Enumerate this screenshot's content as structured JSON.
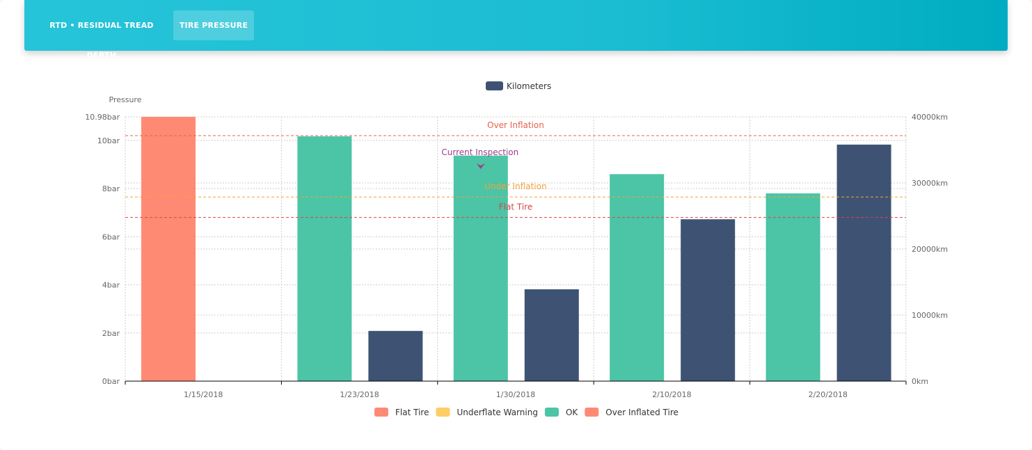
{
  "tabs": [
    {
      "label": "RTD • RESIDUAL TREAD DEPTH",
      "active": false
    },
    {
      "label": "TIRE PRESSURE",
      "active": true
    }
  ],
  "chart_data": {
    "type": "bar",
    "categories": [
      "1/15/2018",
      "1/23/2018",
      "1/30/2018",
      "2/10/2018",
      "2/20/2018"
    ],
    "y_left": {
      "label": "Pressure",
      "unit": "bar",
      "range": [
        0,
        10.98
      ],
      "ticks": [
        "0bar",
        "2bar",
        "4bar",
        "6bar",
        "8bar",
        "10bar",
        "10.98bar"
      ]
    },
    "y_right": {
      "unit": "km",
      "range": [
        0,
        40000
      ],
      "ticks": [
        "0km",
        "10000km",
        "20000km",
        "30000km",
        "40000km"
      ]
    },
    "series": [
      {
        "name": "Pressure",
        "axis": "left",
        "values": [
          10.98,
          10.17,
          9.37,
          8.6,
          7.8
        ],
        "statuses": [
          "Over Inflated Tire",
          "OK",
          "OK",
          "OK",
          "OK"
        ]
      },
      {
        "name": "Kilometers",
        "axis": "right",
        "values": [
          null,
          7600,
          13900,
          24500,
          35800
        ],
        "color": "#3e5373"
      }
    ],
    "reference_lines": [
      {
        "label": "Over Inflation",
        "value": 10.2,
        "color": "#e8604a"
      },
      {
        "label": "Under Inflation",
        "value": 7.65,
        "color": "#f0a43a"
      },
      {
        "label": "Flat Tire",
        "value": 6.8,
        "color": "#d94545"
      }
    ],
    "annotation": {
      "label": "Current Inspection",
      "category": "1/30/2018",
      "color": "#9b3f8c"
    },
    "top_legend": [
      {
        "label": "Kilometers",
        "color": "#3e5373"
      }
    ],
    "bottom_legend": [
      {
        "label": "Flat Tire",
        "color": "#ff8a74"
      },
      {
        "label": "Underflate Warning",
        "color": "#ffcc66"
      },
      {
        "label": "OK",
        "color": "#4cc4a6"
      },
      {
        "label": "Over Inflated Tire",
        "color": "#ff8a74"
      }
    ],
    "status_colors": {
      "Flat Tire": "#ff8a74",
      "Underflate Warning": "#ffcc66",
      "OK": "#4cc4a6",
      "Over Inflated Tire": "#ff8a74"
    },
    "grid": true
  }
}
